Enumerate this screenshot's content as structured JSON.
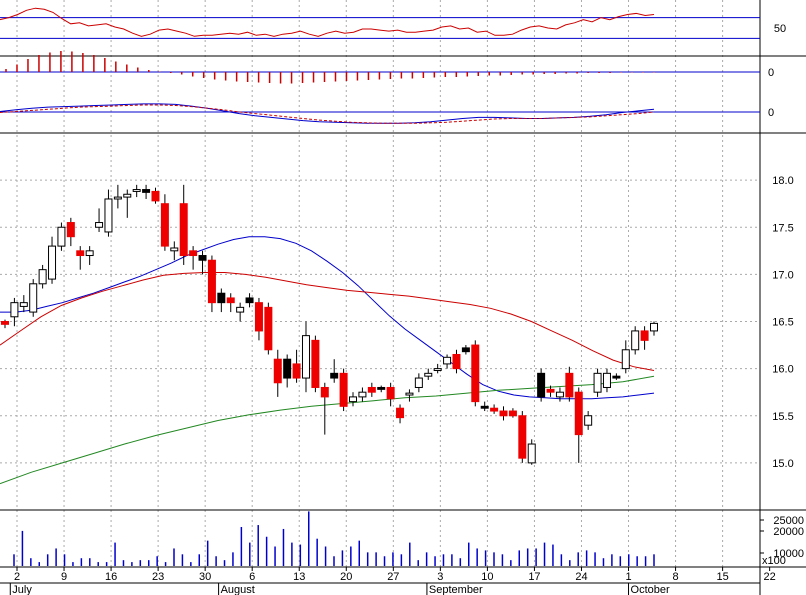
{
  "chart_data": [
    {
      "panel": "oscillator",
      "type": "line",
      "y_ticks": [
        "50"
      ],
      "ylim": [
        0,
        100
      ],
      "series_color": "#cc0000",
      "reference_color": "#0000cc",
      "reference_levels": [
        70,
        30
      ],
      "values": [
        66,
        70,
        76,
        84,
        88,
        86,
        80,
        68,
        58,
        60,
        54,
        56,
        58,
        52,
        48,
        40,
        34,
        38,
        46,
        48,
        44,
        40,
        34,
        36,
        36,
        38,
        40,
        38,
        42,
        36,
        38,
        34,
        38,
        40,
        44,
        38,
        34,
        40,
        44,
        40,
        42,
        48,
        48,
        46,
        44,
        46,
        42,
        42,
        44,
        46,
        52,
        54,
        48,
        50,
        42,
        44,
        36,
        36,
        38,
        46,
        52,
        54,
        50,
        48,
        56,
        60,
        66,
        62,
        70,
        66,
        72,
        76,
        78,
        74,
        76
      ]
    },
    {
      "panel": "histogram",
      "type": "bar",
      "y_ticks": [
        "0"
      ],
      "color": "#cc0000",
      "values": [
        0.6,
        1.5,
        2.6,
        3.4,
        3.9,
        4.2,
        4.1,
        3.8,
        3.4,
        2.8,
        2.1,
        1.5,
        0.9,
        0.4,
        0.1,
        -0.2,
        -0.5,
        -0.9,
        -1.2,
        -1.5,
        -1.7,
        -1.9,
        -2.0,
        -2.1,
        -2.2,
        -2.3,
        -2.3,
        -2.2,
        -2.1,
        -2.0,
        -1.9,
        -1.8,
        -1.7,
        -1.6,
        -1.5,
        -1.4,
        -1.3,
        -1.3,
        -1.2,
        -1.1,
        -1.0,
        -1.0,
        -0.9,
        -0.8,
        -0.7,
        -0.7,
        -0.6,
        -0.5,
        -0.5,
        -0.4,
        -0.4,
        -0.3,
        -0.3,
        -0.2,
        -0.2,
        -0.2,
        -0.1,
        -0.1,
        -0.1,
        -0.1
      ]
    },
    {
      "panel": "macd",
      "type": "line",
      "y_ticks": [
        "0"
      ],
      "series": [
        {
          "color": "#0000cc",
          "style": "solid",
          "values": [
            0.02,
            0.08,
            0.14,
            0.18,
            0.2,
            0.22,
            0.24,
            0.26,
            0.28,
            0.3,
            0.3,
            0.28,
            0.22,
            0.14,
            0.04,
            -0.06,
            -0.14,
            -0.2,
            -0.26,
            -0.32,
            -0.36,
            -0.38,
            -0.4,
            -0.42,
            -0.42,
            -0.42,
            -0.4,
            -0.36,
            -0.3,
            -0.24,
            -0.2,
            -0.2,
            -0.22,
            -0.24,
            -0.24,
            -0.22,
            -0.2,
            -0.16,
            -0.1,
            -0.02,
            0.04,
            0.1
          ]
        },
        {
          "color": "#cc0000",
          "style": "dashed",
          "values": [
            -0.02,
            0.02,
            0.06,
            0.1,
            0.14,
            0.18,
            0.2,
            0.22,
            0.24,
            0.26,
            0.26,
            0.24,
            0.2,
            0.14,
            0.08,
            0.0,
            -0.06,
            -0.12,
            -0.18,
            -0.24,
            -0.3,
            -0.34,
            -0.38,
            -0.4,
            -0.42,
            -0.42,
            -0.42,
            -0.4,
            -0.38,
            -0.34,
            -0.3,
            -0.26,
            -0.24,
            -0.24,
            -0.24,
            -0.22,
            -0.2,
            -0.18,
            -0.14,
            -0.1,
            -0.06,
            0.0
          ]
        }
      ]
    },
    {
      "panel": "price",
      "type": "candlestick",
      "y_ticks": [
        "18.0",
        "17.5",
        "17.0",
        "16.5",
        "16.0",
        "15.5",
        "15.0"
      ],
      "ylim": [
        14.5,
        18.5
      ],
      "up_color": "#ffffff",
      "down_color": "#ee0000",
      "black_color": "#000000",
      "candles": [
        {
          "o": 16.47,
          "h": 16.52,
          "l": 16.43,
          "c": 16.5,
          "k": "down"
        },
        {
          "o": 16.55,
          "h": 16.75,
          "l": 16.45,
          "c": 16.7,
          "k": "up"
        },
        {
          "o": 16.66,
          "h": 16.78,
          "l": 16.6,
          "c": 16.7,
          "k": "up"
        },
        {
          "o": 16.6,
          "h": 16.95,
          "l": 16.55,
          "c": 16.9,
          "k": "up"
        },
        {
          "o": 16.9,
          "h": 17.1,
          "l": 16.85,
          "c": 17.05,
          "k": "up"
        },
        {
          "o": 16.95,
          "h": 17.4,
          "l": 16.9,
          "c": 17.3,
          "k": "up"
        },
        {
          "o": 17.3,
          "h": 17.55,
          "l": 17.25,
          "c": 17.5,
          "k": "up"
        },
        {
          "o": 17.55,
          "h": 17.6,
          "l": 17.3,
          "c": 17.4,
          "k": "down"
        },
        {
          "o": 17.25,
          "h": 17.3,
          "l": 17.05,
          "c": 17.2,
          "k": "down"
        },
        {
          "o": 17.2,
          "h": 17.3,
          "l": 17.1,
          "c": 17.25,
          "k": "up"
        },
        {
          "o": 17.5,
          "h": 17.7,
          "l": 17.45,
          "c": 17.55,
          "k": "up"
        },
        {
          "o": 17.45,
          "h": 17.9,
          "l": 17.4,
          "c": 17.8,
          "k": "up"
        },
        {
          "o": 17.8,
          "h": 17.95,
          "l": 17.7,
          "c": 17.82,
          "k": "up"
        },
        {
          "o": 17.82,
          "h": 17.9,
          "l": 17.6,
          "c": 17.85,
          "k": "up"
        },
        {
          "o": 17.88,
          "h": 17.95,
          "l": 17.82,
          "c": 17.9,
          "k": "up"
        },
        {
          "o": 17.9,
          "h": 17.95,
          "l": 17.8,
          "c": 17.87,
          "k": "black"
        },
        {
          "o": 17.88,
          "h": 17.92,
          "l": 17.75,
          "c": 17.78,
          "k": "down"
        },
        {
          "o": 17.75,
          "h": 17.85,
          "l": 17.25,
          "c": 17.3,
          "k": "down"
        },
        {
          "o": 17.28,
          "h": 17.35,
          "l": 17.15,
          "c": 17.25,
          "k": "up"
        },
        {
          "o": 17.75,
          "h": 17.95,
          "l": 17.1,
          "c": 17.2,
          "k": "down"
        },
        {
          "o": 17.25,
          "h": 17.3,
          "l": 17.05,
          "c": 17.2,
          "k": "down"
        },
        {
          "o": 17.15,
          "h": 17.25,
          "l": 17.0,
          "c": 17.2,
          "k": "black"
        },
        {
          "o": 17.15,
          "h": 17.2,
          "l": 16.6,
          "c": 16.7,
          "k": "down"
        },
        {
          "o": 16.8,
          "h": 16.85,
          "l": 16.6,
          "c": 16.7,
          "k": "black"
        },
        {
          "o": 16.75,
          "h": 16.8,
          "l": 16.6,
          "c": 16.7,
          "k": "down"
        },
        {
          "o": 16.6,
          "h": 16.7,
          "l": 16.5,
          "c": 16.65,
          "k": "up"
        },
        {
          "o": 16.75,
          "h": 16.8,
          "l": 16.65,
          "c": 16.7,
          "k": "black"
        },
        {
          "o": 16.7,
          "h": 16.75,
          "l": 16.3,
          "c": 16.4,
          "k": "down"
        },
        {
          "o": 16.65,
          "h": 16.7,
          "l": 16.15,
          "c": 16.2,
          "k": "down"
        },
        {
          "o": 16.1,
          "h": 16.2,
          "l": 15.7,
          "c": 15.85,
          "k": "down"
        },
        {
          "o": 15.9,
          "h": 16.15,
          "l": 15.8,
          "c": 16.1,
          "k": "black"
        },
        {
          "o": 16.05,
          "h": 16.2,
          "l": 15.85,
          "c": 15.9,
          "k": "down"
        },
        {
          "o": 15.9,
          "h": 16.5,
          "l": 15.75,
          "c": 16.35,
          "k": "up"
        },
        {
          "o": 16.3,
          "h": 16.35,
          "l": 15.75,
          "c": 15.8,
          "k": "down"
        },
        {
          "o": 15.8,
          "h": 15.85,
          "l": 15.3,
          "c": 15.7,
          "k": "down"
        },
        {
          "o": 15.95,
          "h": 16.1,
          "l": 15.85,
          "c": 15.9,
          "k": "black"
        },
        {
          "o": 15.95,
          "h": 16.0,
          "l": 15.55,
          "c": 15.6,
          "k": "down"
        },
        {
          "o": 15.65,
          "h": 15.75,
          "l": 15.6,
          "c": 15.7,
          "k": "up"
        },
        {
          "o": 15.7,
          "h": 15.8,
          "l": 15.65,
          "c": 15.75,
          "k": "up"
        },
        {
          "o": 15.8,
          "h": 15.85,
          "l": 15.7,
          "c": 15.75,
          "k": "down"
        },
        {
          "o": 15.78,
          "h": 15.82,
          "l": 15.75,
          "c": 15.8,
          "k": "black"
        },
        {
          "o": 15.8,
          "h": 15.85,
          "l": 15.6,
          "c": 15.68,
          "k": "down"
        },
        {
          "o": 15.58,
          "h": 15.62,
          "l": 15.42,
          "c": 15.48,
          "k": "down"
        },
        {
          "o": 15.72,
          "h": 15.78,
          "l": 15.65,
          "c": 15.74,
          "k": "up"
        },
        {
          "o": 15.8,
          "h": 15.95,
          "l": 15.75,
          "c": 15.9,
          "k": "up"
        },
        {
          "o": 15.92,
          "h": 16.0,
          "l": 15.88,
          "c": 15.95,
          "k": "up"
        },
        {
          "o": 15.98,
          "h": 16.05,
          "l": 15.95,
          "c": 16.0,
          "k": "up"
        },
        {
          "o": 16.05,
          "h": 16.15,
          "l": 16.0,
          "c": 16.12,
          "k": "up"
        },
        {
          "o": 16.15,
          "h": 16.2,
          "l": 15.95,
          "c": 16.0,
          "k": "down"
        },
        {
          "o": 16.18,
          "h": 16.25,
          "l": 16.15,
          "c": 16.22,
          "k": "black"
        },
        {
          "o": 16.25,
          "h": 16.3,
          "l": 15.6,
          "c": 15.65,
          "k": "down"
        },
        {
          "o": 15.6,
          "h": 15.65,
          "l": 15.55,
          "c": 15.58,
          "k": "black"
        },
        {
          "o": 15.58,
          "h": 15.62,
          "l": 15.52,
          "c": 15.55,
          "k": "down"
        },
        {
          "o": 15.55,
          "h": 15.6,
          "l": 15.45,
          "c": 15.5,
          "k": "down"
        },
        {
          "o": 15.55,
          "h": 15.58,
          "l": 15.48,
          "c": 15.5,
          "k": "down"
        },
        {
          "o": 15.5,
          "h": 15.55,
          "l": 15.0,
          "c": 15.05,
          "k": "down"
        },
        {
          "o": 15.0,
          "h": 15.25,
          "l": 14.98,
          "c": 15.2,
          "k": "up"
        },
        {
          "o": 15.7,
          "h": 16.0,
          "l": 15.65,
          "c": 15.95,
          "k": "black"
        },
        {
          "o": 15.75,
          "h": 15.82,
          "l": 15.7,
          "c": 15.78,
          "k": "down"
        },
        {
          "o": 15.7,
          "h": 15.8,
          "l": 15.65,
          "c": 15.75,
          "k": "up"
        },
        {
          "o": 15.95,
          "h": 16.02,
          "l": 15.65,
          "c": 15.7,
          "k": "down"
        },
        {
          "o": 15.75,
          "h": 15.8,
          "l": 15.0,
          "c": 15.3,
          "k": "down"
        },
        {
          "o": 15.4,
          "h": 15.55,
          "l": 15.35,
          "c": 15.5,
          "k": "up"
        },
        {
          "o": 15.75,
          "h": 16.0,
          "l": 15.7,
          "c": 15.95,
          "k": "up"
        },
        {
          "o": 15.8,
          "h": 16.0,
          "l": 15.75,
          "c": 15.95,
          "k": "up"
        },
        {
          "o": 15.92,
          "h": 15.95,
          "l": 15.88,
          "c": 15.9,
          "k": "black"
        },
        {
          "o": 16.0,
          "h": 16.3,
          "l": 15.95,
          "c": 16.2,
          "k": "up"
        },
        {
          "o": 16.2,
          "h": 16.45,
          "l": 16.15,
          "c": 16.4,
          "k": "up"
        },
        {
          "o": 16.4,
          "h": 16.45,
          "l": 16.2,
          "c": 16.3,
          "k": "down"
        },
        {
          "o": 16.4,
          "h": 16.5,
          "l": 16.35,
          "c": 16.48,
          "k": "up"
        }
      ],
      "overlays": [
        {
          "color": "#0000cc",
          "values": [
            16.6,
            16.6,
            16.62,
            16.66,
            16.7,
            16.75,
            16.8,
            16.86,
            16.92,
            16.98,
            17.05,
            17.12,
            17.2,
            17.26,
            17.32,
            17.37,
            17.4,
            17.4,
            17.38,
            17.33,
            17.25,
            17.14,
            17.02,
            16.88,
            16.72,
            16.56,
            16.42,
            16.3,
            16.18,
            16.06,
            15.94,
            15.83,
            15.76,
            15.72,
            15.7,
            15.69,
            15.68,
            15.68,
            15.68,
            15.69,
            15.7,
            15.72,
            15.74
          ]
        },
        {
          "color": "#cc0000",
          "values": [
            16.25,
            16.4,
            16.55,
            16.67,
            16.75,
            16.82,
            16.88,
            16.94,
            16.99,
            17.01,
            17.02,
            17.02,
            17.0,
            16.97,
            16.93,
            16.89,
            16.86,
            16.83,
            16.81,
            16.79,
            16.77,
            16.74,
            16.71,
            16.68,
            16.64,
            16.58,
            16.5,
            16.4,
            16.3,
            16.19,
            16.09,
            16.02,
            15.98
          ]
        },
        {
          "color": "#228822",
          "values": [
            14.78,
            14.9,
            15.0,
            15.1,
            15.2,
            15.29,
            15.37,
            15.45,
            15.51,
            15.56,
            15.6,
            15.63,
            15.66,
            15.69,
            15.71,
            15.74,
            15.77,
            15.79,
            15.81,
            15.83,
            15.86,
            15.92
          ]
        }
      ]
    },
    {
      "panel": "volume",
      "type": "bar",
      "y_ticks": [
        "25000",
        "20000",
        "10000"
      ],
      "scale_label": "x100",
      "color": "#0000cc",
      "values": [
        6,
        18,
        4,
        2,
        6,
        9,
        6,
        2,
        4,
        4,
        2,
        2,
        12,
        3,
        2,
        3,
        3,
        5,
        2,
        9,
        6,
        2,
        6,
        13,
        5,
        3,
        7,
        20,
        12,
        21,
        15,
        10,
        19,
        12,
        11,
        28,
        14,
        10,
        5,
        8,
        10,
        13,
        7,
        7,
        5,
        7,
        6,
        12,
        3,
        7,
        5,
        6,
        6,
        4,
        12,
        9,
        8,
        7,
        6,
        3,
        8,
        9,
        9,
        12,
        11,
        6,
        3,
        7,
        8,
        7,
        4,
        6,
        5,
        6,
        5,
        5,
        6
      ]
    }
  ],
  "x_axis": {
    "day_labels": [
      "2",
      "9",
      "16",
      "23",
      "30",
      "6",
      "13",
      "20",
      "27",
      "3",
      "10",
      "17",
      "24",
      "1",
      "8",
      "15",
      "22"
    ],
    "month_labels": [
      "July",
      "August",
      "September",
      "October"
    ]
  }
}
